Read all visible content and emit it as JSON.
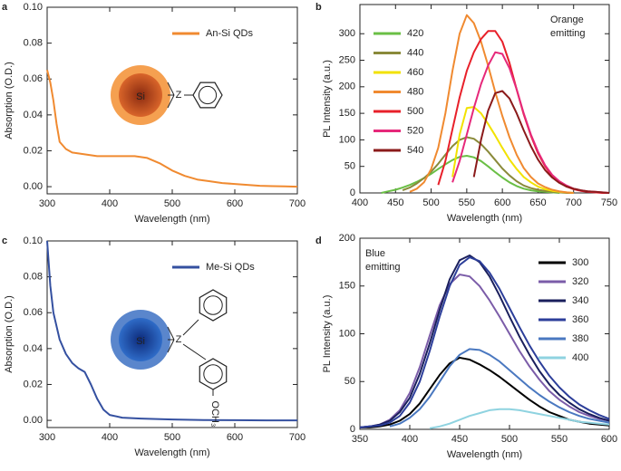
{
  "chart_data": [
    {
      "type": "line",
      "panel_label": "a",
      "xlabel": "Wavelength (nm)",
      "ylabel": "Absorption (O.D.)",
      "x": [
        300,
        305,
        310,
        315,
        320,
        330,
        340,
        360,
        380,
        400,
        420,
        440,
        460,
        480,
        500,
        520,
        540,
        560,
        580,
        600,
        620,
        640,
        660,
        680,
        700
      ],
      "series": [
        {
          "name": "An-Si QDs",
          "color": "#f08a30",
          "values": [
            0.065,
            0.058,
            0.048,
            0.035,
            0.025,
            0.021,
            0.019,
            0.018,
            0.017,
            0.017,
            0.017,
            0.017,
            0.016,
            0.013,
            0.009,
            0.006,
            0.004,
            0.003,
            0.002,
            0.0015,
            0.001,
            0.0005,
            0.0003,
            0.0002,
            0.0
          ]
        }
      ],
      "xlim": [
        300,
        700
      ],
      "xticks": [
        300,
        400,
        500,
        600,
        700
      ],
      "ylim": [
        -0.004,
        0.1
      ],
      "yticks": [
        {
          "value": 0,
          "label": "0.00"
        },
        0.02,
        0.04,
        0.06,
        0.08,
        {
          "value": 0.1,
          "label": "0.10"
        }
      ],
      "legend": "upper right",
      "inset": "phenyl",
      "inset_labels": [
        "Si",
        "Z"
      ]
    },
    {
      "type": "line",
      "panel_label": "b",
      "xlabel": "Wavelength (nm)",
      "ylabel": "PL Intensity (a.u.)",
      "annotation": [
        "Orange",
        "emitting"
      ],
      "annotation_color": "#f08a30",
      "x": [
        420,
        430,
        440,
        450,
        460,
        470,
        480,
        490,
        500,
        510,
        520,
        530,
        540,
        550,
        560,
        570,
        580,
        590,
        600,
        610,
        620,
        630,
        640,
        650,
        660,
        670,
        680,
        690,
        700,
        710,
        720,
        730,
        740,
        750
      ],
      "series": [
        {
          "name": "420",
          "color": "#6abf45",
          "values": [
            null,
            0,
            3,
            6,
            10,
            15,
            21,
            28,
            36,
            45,
            54,
            62,
            68,
            70,
            67,
            60,
            50,
            39,
            29,
            20,
            13,
            8,
            5,
            3,
            2,
            1,
            0,
            null,
            null,
            null,
            null,
            null,
            null,
            null
          ]
        },
        {
          "name": "440",
          "color": "#8a8a3a",
          "values": [
            null,
            null,
            null,
            null,
            5,
            10,
            18,
            28,
            40,
            55,
            72,
            88,
            100,
            105,
            102,
            92,
            78,
            62,
            46,
            33,
            22,
            14,
            9,
            6,
            4,
            2,
            1,
            0,
            0,
            null,
            null,
            null,
            null,
            null
          ]
        },
        {
          "name": "460",
          "color": "#f2e200",
          "values": [
            null,
            null,
            null,
            null,
            null,
            null,
            null,
            null,
            null,
            null,
            null,
            30,
            110,
            160,
            162,
            150,
            130,
            108,
            85,
            63,
            45,
            30,
            20,
            12,
            7,
            4,
            2,
            1,
            0,
            null,
            null,
            null,
            null,
            null
          ]
        },
        {
          "name": "480",
          "color": "#f08a30",
          "values": [
            null,
            null,
            null,
            null,
            null,
            2,
            8,
            20,
            45,
            85,
            150,
            230,
            300,
            335,
            320,
            285,
            240,
            190,
            145,
            105,
            72,
            47,
            30,
            18,
            11,
            6,
            3,
            1,
            0,
            null,
            null,
            null,
            null,
            null
          ]
        },
        {
          "name": "500",
          "color": "#e8202a",
          "values": [
            null,
            null,
            null,
            null,
            null,
            null,
            null,
            null,
            null,
            15,
            60,
            120,
            180,
            230,
            265,
            290,
            305,
            305,
            285,
            245,
            195,
            148,
            108,
            75,
            50,
            32,
            20,
            12,
            7,
            4,
            2,
            1,
            0,
            0
          ]
        },
        {
          "name": "520",
          "color": "#e6287a",
          "values": [
            null,
            null,
            null,
            null,
            null,
            null,
            null,
            null,
            null,
            null,
            null,
            20,
            60,
            110,
            160,
            205,
            240,
            265,
            262,
            235,
            195,
            150,
            110,
            78,
            52,
            34,
            22,
            14,
            8,
            5,
            3,
            2,
            1,
            0
          ]
        },
        {
          "name": "540",
          "color": "#8b1a1a",
          "values": [
            null,
            null,
            null,
            null,
            null,
            null,
            null,
            null,
            null,
            null,
            null,
            null,
            null,
            null,
            30,
            100,
            155,
            188,
            192,
            178,
            150,
            118,
            88,
            63,
            43,
            29,
            19,
            12,
            8,
            5,
            3,
            2,
            1,
            0
          ]
        }
      ],
      "xlim": [
        400,
        750
      ],
      "xticks": [
        400,
        450,
        500,
        550,
        600,
        650,
        700,
        750
      ],
      "ylim": [
        0,
        355
      ],
      "yticks": [
        0,
        50,
        100,
        150,
        200,
        250,
        300
      ],
      "legend": "upper left"
    },
    {
      "type": "line",
      "panel_label": "c",
      "xlabel": "Wavelength (nm)",
      "ylabel": "Absorption (O.D.)",
      "x": [
        300,
        305,
        310,
        320,
        330,
        340,
        350,
        360,
        370,
        380,
        390,
        400,
        420,
        450,
        500,
        550,
        600,
        650,
        700
      ],
      "series": [
        {
          "name": "Me-Si QDs",
          "color": "#3450a0",
          "values": [
            0.1,
            0.075,
            0.06,
            0.045,
            0.037,
            0.032,
            0.029,
            0.027,
            0.02,
            0.012,
            0.006,
            0.003,
            0.0015,
            0.001,
            0.0005,
            0.0002,
            0.0001,
            0,
            0
          ]
        }
      ],
      "xlim": [
        300,
        700
      ],
      "xticks": [
        300,
        400,
        500,
        600,
        700
      ],
      "ylim": [
        -0.004,
        0.1
      ],
      "yticks": [
        {
          "value": 0,
          "label": "0.00"
        },
        0.02,
        0.04,
        0.06,
        0.08,
        {
          "value": 0.1,
          "label": "0.10"
        }
      ],
      "legend": "upper right",
      "inset": "anisole",
      "inset_labels": [
        "Si",
        "Z",
        "OCH₃"
      ]
    },
    {
      "type": "line",
      "panel_label": "d",
      "xlabel": "Wavelength (nm)",
      "ylabel": "PL Intensity (a.u.)",
      "annotation": [
        "Blue",
        "emitting"
      ],
      "annotation_color": "#3450a0",
      "x": [
        350,
        360,
        370,
        380,
        390,
        400,
        410,
        420,
        430,
        440,
        450,
        460,
        470,
        480,
        490,
        500,
        510,
        520,
        530,
        540,
        550,
        560,
        570,
        580,
        590,
        600
      ],
      "series": [
        {
          "name": "300",
          "color": "#000000",
          "values": [
            2,
            2,
            3,
            5,
            9,
            16,
            27,
            42,
            57,
            69,
            75,
            73,
            68,
            62,
            55,
            47,
            39,
            31,
            24,
            18,
            14,
            10,
            8,
            6,
            5,
            4
          ]
        },
        {
          "name": "320",
          "color": "#7b5ca8",
          "values": [
            2,
            3,
            5,
            10,
            20,
            38,
            65,
            98,
            130,
            152,
            162,
            160,
            150,
            135,
            118,
            100,
            82,
            66,
            52,
            40,
            31,
            24,
            18,
            14,
            11,
            9
          ]
        },
        {
          "name": "340",
          "color": "#1a1f5c",
          "values": [
            2,
            3,
            5,
            9,
            18,
            33,
            58,
            90,
            125,
            157,
            177,
            182,
            175,
            160,
            140,
            118,
            97,
            78,
            61,
            47,
            36,
            28,
            21,
            16,
            12,
            9
          ]
        },
        {
          "name": "360",
          "color": "#2c3e9a",
          "values": [
            2,
            3,
            4,
            7,
            14,
            28,
            50,
            82,
            118,
            150,
            172,
            180,
            176,
            164,
            147,
            127,
            107,
            88,
            71,
            56,
            44,
            34,
            26,
            20,
            15,
            11
          ]
        },
        {
          "name": "380",
          "color": "#4a78c0",
          "values": [
            null,
            null,
            null,
            3,
            6,
            12,
            21,
            34,
            50,
            66,
            78,
            84,
            83,
            78,
            71,
            62,
            53,
            44,
            36,
            29,
            23,
            18,
            14,
            11,
            9,
            7
          ]
        },
        {
          "name": "400",
          "color": "#8fd3e0",
          "values": [
            null,
            null,
            null,
            null,
            null,
            null,
            null,
            1,
            3,
            6,
            10,
            14,
            17,
            20,
            21,
            21,
            20,
            18,
            16,
            14,
            12,
            10,
            8,
            7,
            6,
            5
          ]
        }
      ],
      "xlim": [
        350,
        600
      ],
      "xticks": [
        350,
        400,
        450,
        500,
        550,
        600
      ],
      "ylim": [
        0,
        200
      ],
      "yticks": [
        0,
        50,
        100,
        150,
        200
      ],
      "legend": "upper right"
    }
  ]
}
